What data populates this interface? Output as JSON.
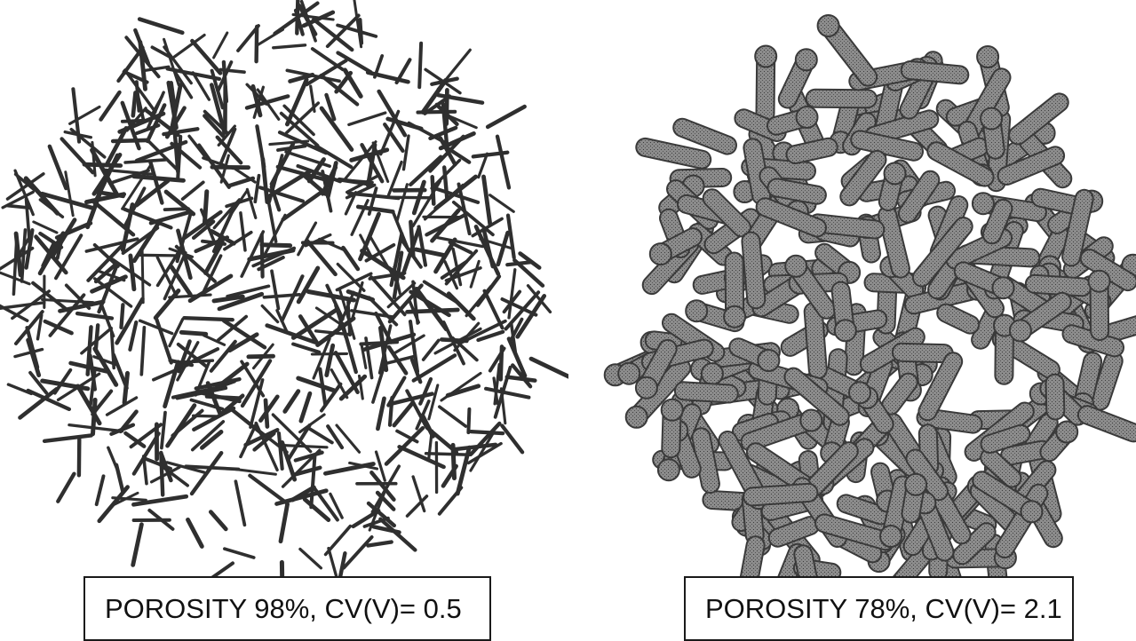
{
  "figure": {
    "left_panel": {
      "caption": "POROSITY 98%, CV(V)= 0.5",
      "strut_color": "#2f2f2f",
      "style": "thin-strut wireframe mesh"
    },
    "right_panel": {
      "caption": "POROSITY 78%, CV(V)= 2.1",
      "strut_color": "#8a8a8a",
      "style": "thick-strut tessellated mesh"
    }
  }
}
